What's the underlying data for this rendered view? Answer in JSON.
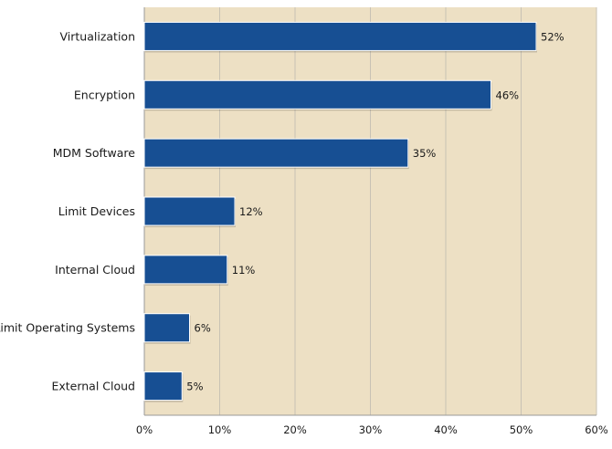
{
  "colors": {
    "plot_background": "#ede0c4",
    "bar": "#174f93",
    "grid": "#c8c2b4",
    "axis": "#9a9a9a"
  },
  "chart_data": {
    "type": "bar",
    "orientation": "horizontal",
    "title": "",
    "xlabel": "",
    "ylabel": "",
    "categories": [
      "Virtualization",
      "Encryption",
      "MDM Software",
      "Limit Devices",
      "Internal Cloud",
      "Limit Operating Systems",
      "External Cloud"
    ],
    "values": [
      52,
      46,
      35,
      12,
      11,
      6,
      5
    ],
    "value_labels": [
      "52%",
      "46%",
      "35%",
      "12%",
      "11%",
      "6%",
      "5%"
    ],
    "xlim": [
      0,
      60
    ],
    "xticks": [
      0,
      10,
      20,
      30,
      40,
      50,
      60
    ],
    "xtick_labels": [
      "0%",
      "10%",
      "20%",
      "30%",
      "40%",
      "50%",
      "60%"
    ],
    "grid": "vertical",
    "legend": "none"
  }
}
